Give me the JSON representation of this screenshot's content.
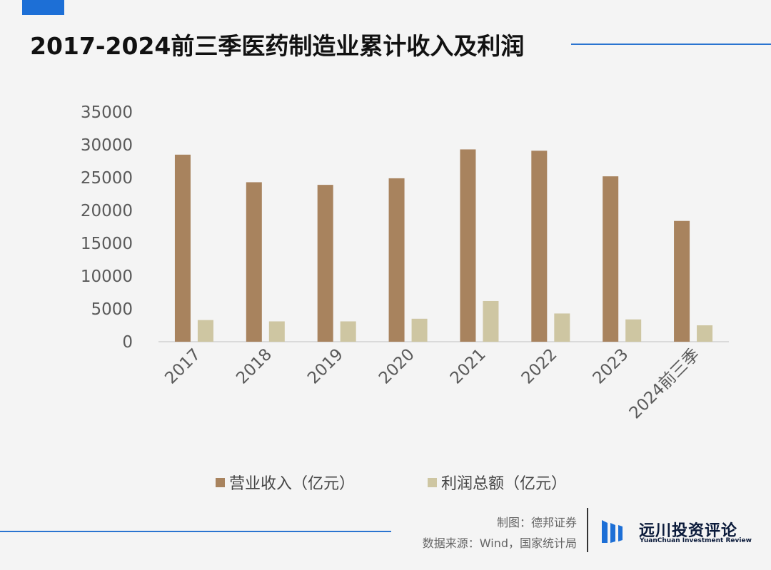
{
  "title": "2017-2024前三季医药制造业累计收入及利润",
  "credit": {
    "maker": "制图：德邦证券",
    "source": "数据来源：Wind，国家统计局"
  },
  "logo": {
    "name_cn": "远川投资评论",
    "name_en": "YuanChuan Investment Review",
    "icon": "logo-mark-icon"
  },
  "colors": {
    "accent": "#1d6fd6",
    "revenue": "#a8835e",
    "profit": "#cec6a2"
  },
  "chart_data": {
    "type": "bar",
    "title": "2017-2024前三季医药制造业累计收入及利润",
    "categories": [
      "2017",
      "2018",
      "2019",
      "2020",
      "2021",
      "2022",
      "2023",
      "2024前三季"
    ],
    "series": [
      {
        "name": "营业收入（亿元）",
        "values": [
          28500,
          24300,
          23900,
          24900,
          29300,
          29100,
          25200,
          18400
        ]
      },
      {
        "name": "利润总额（亿元）",
        "values": [
          3300,
          3100,
          3100,
          3500,
          6200,
          4300,
          3400,
          2500
        ]
      }
    ],
    "yticks": [
      "0",
      "5000",
      "10000",
      "15000",
      "20000",
      "25000",
      "30000",
      "35000"
    ],
    "ylim": [
      0,
      35000
    ],
    "xlabel": "",
    "ylabel": "",
    "legend_position": "bottom",
    "grid": false
  }
}
